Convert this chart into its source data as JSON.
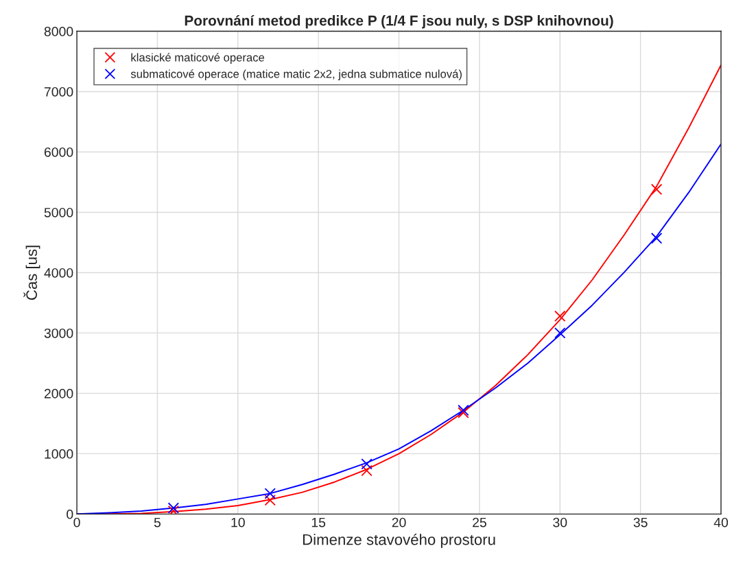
{
  "chart_data": {
    "type": "line",
    "title": "Porovnání metod predikce P (1/4 F jsou nuly, s DSP knihovnou)",
    "xlabel": "Dimenze stavového prostoru",
    "ylabel": "Čas [us]",
    "xlim": [
      0,
      40
    ],
    "xticks": [
      0,
      5,
      10,
      15,
      20,
      25,
      30,
      35,
      40
    ],
    "ylim": [
      0,
      8000
    ],
    "yticks": [
      0,
      1000,
      2000,
      3000,
      4000,
      5000,
      6000,
      7000,
      8000
    ],
    "grid": true,
    "legend": "top left",
    "series": [
      {
        "name": "klasické maticové operace",
        "type": "scatter",
        "marker": "cross",
        "color": "#ff0000",
        "x": [
          6,
          12,
          18,
          24,
          30,
          36
        ],
        "values": [
          50,
          230,
          720,
          1680,
          3280,
          5380
        ]
      },
      {
        "name": "submaticové operace (matice matic 2x2, jedna submatice nulová)",
        "type": "scatter",
        "marker": "cross",
        "color": "#0000ff",
        "x": [
          6,
          12,
          18,
          24,
          30,
          36
        ],
        "values": [
          100,
          340,
          830,
          1720,
          3000,
          4570
        ]
      },
      {
        "color": "#ff0000",
        "x": [
          0,
          2,
          4,
          6,
          8,
          10,
          12,
          14,
          16,
          18,
          20,
          22,
          24,
          26,
          28,
          30,
          32,
          34,
          36,
          38,
          40
        ],
        "values": [
          0,
          0,
          10,
          40,
          80,
          140,
          240,
          360,
          530,
          740,
          1000,
          1320,
          1690,
          2130,
          2640,
          3220,
          3880,
          4630,
          5430,
          6400,
          7440
        ]
      },
      {
        "color": "#0000ff",
        "x": [
          0,
          2,
          4,
          6,
          8,
          10,
          12,
          14,
          16,
          18,
          20,
          22,
          24,
          26,
          28,
          30,
          32,
          34,
          36,
          38,
          40
        ],
        "values": [
          0,
          20,
          50,
          100,
          160,
          250,
          340,
          490,
          660,
          850,
          1080,
          1380,
          1720,
          2090,
          2500,
          2970,
          3460,
          4010,
          4600,
          5330,
          6130
        ]
      }
    ]
  }
}
